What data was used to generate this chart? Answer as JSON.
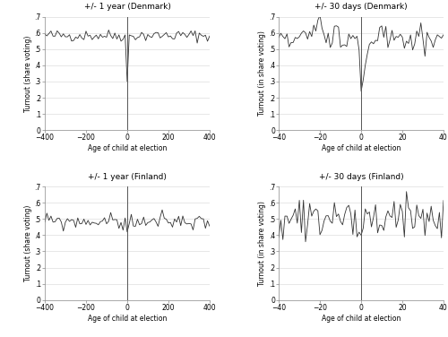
{
  "title_dk_year": "+/- 1 year (Denmark)",
  "title_dk_30": "+/- 30 days (Denmark)",
  "title_fi_year": "+/- 1 year (Finland)",
  "title_fi_30": "+/- 30 days (Finland)",
  "xlabel": "Age of child at election",
  "ylabel_left": "Turnout (share voting)",
  "ylabel_right": "Turnout (in share voting)",
  "dk_year_xlim": [
    -400,
    400
  ],
  "dk_30_xlim": [
    -40,
    40
  ],
  "fi_year_xlim": [
    -400,
    400
  ],
  "fi_30_xlim": [
    -40,
    40
  ],
  "ylim": [
    0,
    0.7
  ],
  "yticks": [
    0,
    0.1,
    0.2,
    0.3,
    0.4,
    0.5,
    0.6,
    0.7
  ],
  "ytick_labels": [
    "0",
    ".1",
    ".2",
    ".3",
    ".4",
    ".5",
    ".6",
    ".7"
  ],
  "dk_year_xticks": [
    -400,
    -200,
    0,
    200,
    400
  ],
  "dk_30_xticks": [
    -40,
    -20,
    0,
    20,
    40
  ],
  "fi_year_xticks": [
    -400,
    -200,
    0,
    200,
    400
  ],
  "fi_30_xticks": [
    -40,
    -20,
    0,
    20,
    40
  ],
  "line_color": "#333333",
  "vline_color": "#555555",
  "grid_color": "#dddddd",
  "background_color": "#ffffff",
  "title_fontsize": 6.5,
  "label_fontsize": 5.5,
  "tick_fontsize": 5.5
}
